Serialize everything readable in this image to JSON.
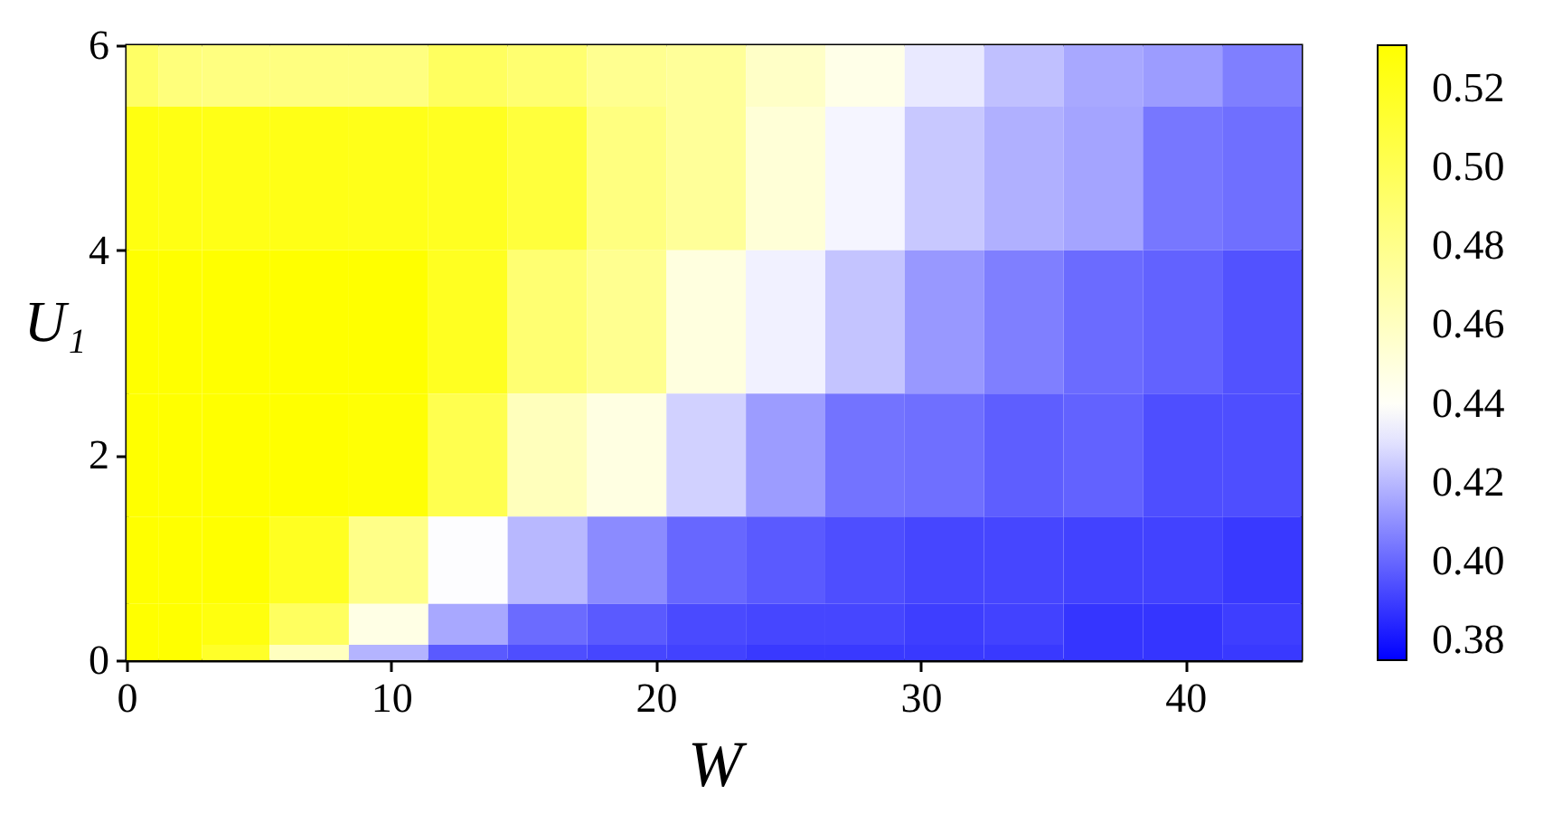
{
  "chart_data": {
    "type": "heatmap",
    "xlabel": "W",
    "ylabel": "U₁",
    "x": [
      0.6,
      1.8,
      3.9,
      6.9,
      9.9,
      12.9,
      15.9,
      18.9,
      21.9,
      24.9,
      27.9,
      30.9,
      33.9,
      36.9,
      39.9,
      42.9
    ],
    "y": [
      6,
      4.8,
      3.2,
      2,
      0.8,
      0.3,
      0
    ],
    "xlim": [
      0,
      44.4
    ],
    "ylim": [
      0,
      6
    ],
    "xticks": [
      0,
      10,
      20,
      30,
      40
    ],
    "yticks": [
      0,
      2,
      4,
      6
    ],
    "clim": [
      0.375,
      0.531
    ],
    "cticks": [
      0.38,
      {
        "value": 0.4,
        "label": "0.40"
      },
      0.42,
      0.44,
      0.46,
      0.48,
      {
        "value": 0.5,
        "label": "0.50"
      },
      0.52
    ],
    "colors": [
      "#0000ff",
      "#8080ff",
      "#ffffff",
      "#ffffaa",
      "#ffff55",
      "#ffff00"
    ],
    "cells": [
      [
        0.494,
        0.486,
        0.484,
        0.484,
        0.484,
        0.496,
        0.49,
        0.478,
        0.475,
        0.458,
        0.446,
        0.432,
        0.422,
        0.416,
        0.413,
        0.406
      ],
      [
        0.525,
        0.524,
        0.523,
        0.523,
        0.522,
        0.519,
        0.509,
        0.484,
        0.475,
        0.452,
        0.435,
        0.424,
        0.418,
        0.415,
        0.404,
        0.402
      ],
      [
        0.531,
        0.531,
        0.531,
        0.531,
        0.531,
        0.519,
        0.489,
        0.478,
        0.449,
        0.434,
        0.423,
        0.412,
        0.406,
        0.401,
        0.399,
        0.395
      ],
      [
        0.531,
        0.531,
        0.531,
        0.531,
        0.529,
        0.502,
        0.462,
        0.448,
        0.426,
        0.413,
        0.403,
        0.402,
        0.398,
        0.399,
        0.394,
        0.394
      ],
      [
        0.531,
        0.531,
        0.531,
        0.519,
        0.481,
        0.437,
        0.42,
        0.409,
        0.4,
        0.397,
        0.394,
        0.392,
        0.392,
        0.391,
        0.391,
        0.389
      ],
      [
        0.531,
        0.531,
        0.526,
        0.496,
        0.447,
        0.416,
        0.401,
        0.397,
        0.393,
        0.392,
        0.392,
        0.39,
        0.391,
        0.388,
        0.388,
        0.39
      ],
      [
        0.531,
        0.531,
        0.516,
        0.461,
        0.419,
        0.397,
        0.394,
        0.392,
        0.391,
        0.389,
        0.389,
        0.389,
        0.389,
        0.388,
        0.388,
        0.389
      ]
    ]
  }
}
